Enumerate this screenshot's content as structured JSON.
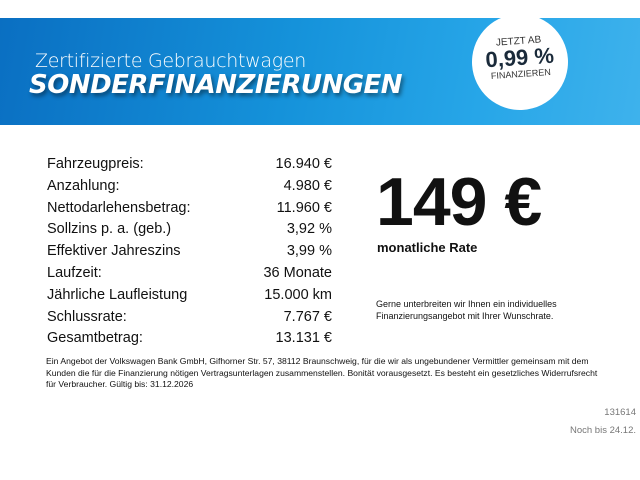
{
  "banner": {
    "subtitle": "Zertifizierte Gebrauchtwagen",
    "title": "SONDERFINANZIERUNGEN",
    "color": "#1592da",
    "badge": {
      "line1": "JETZT AB",
      "rate": "0,99 %",
      "line3": "FINANZIEREN"
    }
  },
  "details": [
    {
      "label": "Fahrzeugpreis:",
      "value": "16.940 €"
    },
    {
      "label": "Anzahlung:",
      "value": "4.980 €"
    },
    {
      "label": "Nettodarlehensbetrag:",
      "value": "11.960 €"
    },
    {
      "label": "Sollzins p. a. (geb.)",
      "value": "3,92 %"
    },
    {
      "label": "Effektiver Jahreszins",
      "value": "3,99 %"
    },
    {
      "label": "Laufzeit:",
      "value": "36 Monate"
    },
    {
      "label": "Jährliche Laufleistung",
      "value": "15.000 km"
    },
    {
      "label": "Schlussrate:",
      "value": "7.767 €"
    },
    {
      "label": "Gesamtbetrag:",
      "value": "13.131 €"
    }
  ],
  "offer": {
    "price": "149 €",
    "rate_label": "monatliche Rate",
    "note": "Gerne unterbreiten wir Ihnen ein individuelles Finanzierungsangebot mit Ihrer Wunschrate."
  },
  "legal": "Ein Angebot der Volkswagen Bank GmbH, Gifhorner Str. 57, 38112 Braunschweig, für die wir als ungebundener Vermittler gemeinsam mit dem Kunden die für die Finanzierung nötigen Vertragsunterlagen zusammenstellen. Bonität vorausgesetzt. Es besteht ein gesetzliches Widerrufsrecht für Verbraucher. Gültig bis: 31.12.2026",
  "footer": {
    "code": "131614",
    "valid_until": "Noch bis 24.12."
  }
}
